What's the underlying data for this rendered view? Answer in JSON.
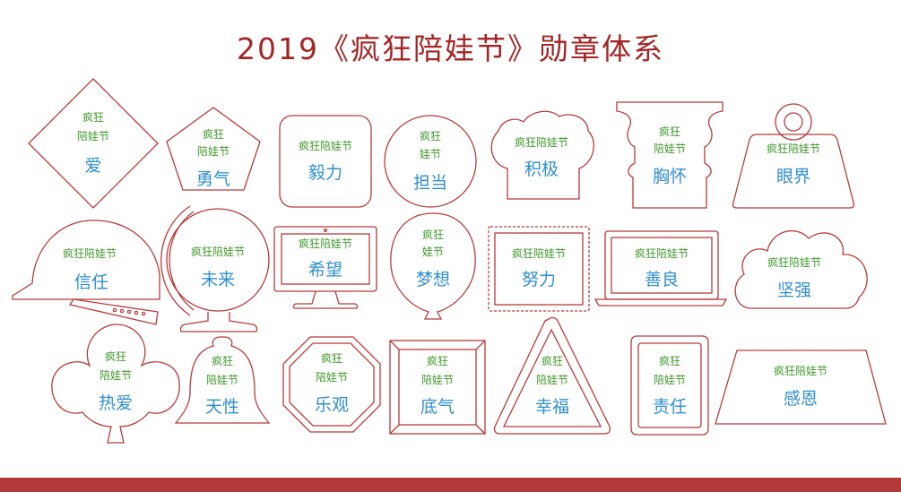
{
  "title": "2019《疯狂陪娃节》勋章体系",
  "colors": {
    "title": "#a32626",
    "outline": "#b83a3a",
    "brand_text": "#3e9a2a",
    "name_text": "#2f8fcf",
    "bottom_bar": "#b33a3a"
  },
  "brand_full": "疯狂陪娃节",
  "brand_line1": "疯狂",
  "brand_line2": "陪娃节",
  "brand_line1_alt": "疯狂",
  "brand_line2_alt": "娃节",
  "badges": [
    {
      "name": "爱",
      "shape": "diamond"
    },
    {
      "name": "勇气",
      "shape": "pentagon"
    },
    {
      "name": "毅力",
      "shape": "rounded-square"
    },
    {
      "name": "担当",
      "shape": "circle"
    },
    {
      "name": "积极",
      "shape": "chef-hat"
    },
    {
      "name": "胸怀",
      "shape": "pillar"
    },
    {
      "name": "眼界",
      "shape": "weight"
    },
    {
      "name": "信任",
      "shape": "helmet"
    },
    {
      "name": "未来",
      "shape": "globe"
    },
    {
      "name": "希望",
      "shape": "monitor"
    },
    {
      "name": "梦想",
      "shape": "balloon"
    },
    {
      "name": "努力",
      "shape": "stamp"
    },
    {
      "name": "善良",
      "shape": "laptop"
    },
    {
      "name": "坚强",
      "shape": "cloud"
    },
    {
      "name": "热爱",
      "shape": "clover"
    },
    {
      "name": "天性",
      "shape": "bell"
    },
    {
      "name": "乐观",
      "shape": "octagon"
    },
    {
      "name": "底气",
      "shape": "frame"
    },
    {
      "name": "幸福",
      "shape": "triangle"
    },
    {
      "name": "责任",
      "shape": "rounded-frame"
    },
    {
      "name": "感恩",
      "shape": "trapezoid"
    }
  ]
}
